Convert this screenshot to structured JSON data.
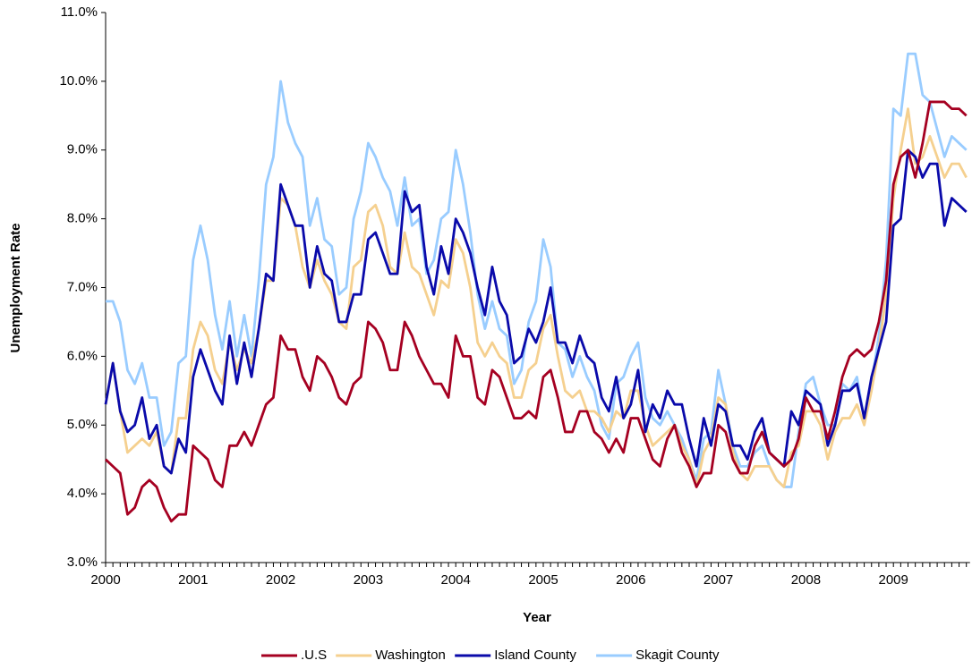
{
  "chart_data": {
    "type": "line",
    "x_label": "Year",
    "y_label": "Unemployment Rate",
    "categories": [
      "2000",
      null,
      null,
      null,
      null,
      null,
      null,
      null,
      null,
      null,
      null,
      null,
      "2001",
      null,
      null,
      null,
      null,
      null,
      null,
      null,
      null,
      null,
      null,
      null,
      "2002",
      null,
      null,
      null,
      null,
      null,
      null,
      null,
      null,
      null,
      null,
      null,
      "2003",
      null,
      null,
      null,
      null,
      null,
      null,
      null,
      null,
      null,
      null,
      null,
      "2004",
      null,
      null,
      null,
      null,
      null,
      null,
      null,
      null,
      null,
      null,
      null,
      "2005",
      null,
      null,
      null,
      null,
      null,
      null,
      null,
      null,
      null,
      null,
      null,
      "2006",
      null,
      null,
      null,
      null,
      null,
      null,
      null,
      null,
      null,
      null,
      null,
      "2007",
      null,
      null,
      null,
      null,
      null,
      null,
      null,
      null,
      null,
      null,
      null,
      "2008",
      null,
      null,
      null,
      null,
      null,
      null,
      null,
      null,
      null,
      null,
      null,
      "2009",
      null,
      null,
      null,
      null,
      null,
      null,
      null,
      null,
      null,
      null
    ],
    "ylim": [
      3,
      11
    ],
    "yticks": [
      {
        "value": 3,
        "label": "3.0%"
      },
      {
        "value": 4,
        "label": "4.0%"
      },
      {
        "value": 5,
        "label": "5.0%"
      },
      {
        "value": 6,
        "label": "6.0%"
      },
      {
        "value": 7,
        "label": "7.0%"
      },
      {
        "value": 8,
        "label": "8.0%"
      },
      {
        "value": 9,
        "label": "9.0%"
      },
      {
        "value": 10,
        "label": "10.0%"
      },
      {
        "value": 11,
        "label": "11.0%"
      }
    ],
    "grid": false,
    "legend": "bottom",
    "series": [
      {
        "name": ".U.S",
        "color": "#a50021",
        "values": [
          4.5,
          4.4,
          4.3,
          3.7,
          3.8,
          4.1,
          4.2,
          4.1,
          3.8,
          3.6,
          3.7,
          3.7,
          4.7,
          4.6,
          4.5,
          4.2,
          4.1,
          4.7,
          4.7,
          4.9,
          4.7,
          5.0,
          5.3,
          5.4,
          6.3,
          6.1,
          6.1,
          5.7,
          5.5,
          6.0,
          5.9,
          5.7,
          5.4,
          5.3,
          5.6,
          5.7,
          6.5,
          6.4,
          6.2,
          5.8,
          5.8,
          6.5,
          6.3,
          6.0,
          5.8,
          5.6,
          5.6,
          5.4,
          6.3,
          6.0,
          6.0,
          5.4,
          5.3,
          5.8,
          5.7,
          5.4,
          5.1,
          5.1,
          5.2,
          5.1,
          5.7,
          5.8,
          5.4,
          4.9,
          4.9,
          5.2,
          5.2,
          4.9,
          4.8,
          4.6,
          4.8,
          4.6,
          5.1,
          5.1,
          4.8,
          4.5,
          4.4,
          4.8,
          5.0,
          4.6,
          4.4,
          4.1,
          4.3,
          4.3,
          5.0,
          4.9,
          4.5,
          4.3,
          4.3,
          4.7,
          4.9,
          4.6,
          4.5,
          4.4,
          4.5,
          4.8,
          5.4,
          5.2,
          5.2,
          4.8,
          5.2,
          5.7,
          6.0,
          6.1,
          6.0,
          6.1,
          6.5,
          7.1,
          8.5,
          8.9,
          9.0,
          8.6,
          9.1,
          9.7,
          9.7,
          9.7,
          9.6,
          9.6,
          9.5
        ]
      },
      {
        "name": "Washington",
        "color": "#f5d08f",
        "values": [
          5.3,
          5.9,
          5.2,
          4.6,
          4.7,
          4.8,
          4.7,
          4.9,
          4.4,
          4.3,
          5.1,
          5.1,
          6.1,
          6.5,
          6.3,
          5.8,
          5.6,
          6.2,
          5.8,
          6.1,
          5.9,
          6.4,
          7.1,
          7.1,
          8.3,
          8.2,
          7.9,
          7.3,
          7.0,
          7.4,
          7.1,
          6.9,
          6.5,
          6.4,
          7.3,
          7.4,
          8.1,
          8.2,
          7.9,
          7.3,
          7.2,
          7.8,
          7.3,
          7.2,
          6.9,
          6.6,
          7.1,
          7.0,
          7.7,
          7.5,
          7.0,
          6.2,
          6.0,
          6.2,
          6.0,
          5.9,
          5.4,
          5.4,
          5.8,
          5.9,
          6.4,
          6.6,
          6.0,
          5.5,
          5.4,
          5.5,
          5.2,
          5.2,
          5.1,
          4.9,
          5.2,
          5.1,
          5.5,
          5.5,
          5.0,
          4.7,
          4.8,
          4.9,
          5.0,
          4.7,
          4.5,
          4.1,
          4.6,
          4.8,
          5.4,
          5.3,
          4.6,
          4.3,
          4.2,
          4.4,
          4.4,
          4.4,
          4.2,
          4.1,
          4.6,
          4.7,
          5.2,
          5.2,
          5.0,
          4.5,
          4.9,
          5.1,
          5.1,
          5.3,
          5.0,
          5.5,
          6.1,
          6.9,
          8.3,
          9.0,
          9.6,
          8.8,
          8.9,
          9.2,
          8.9,
          8.6,
          8.8,
          8.8,
          8.6
        ]
      },
      {
        "name": "Island County",
        "color": "#0a0aaa",
        "values": [
          5.3,
          5.9,
          5.2,
          4.9,
          5.0,
          5.4,
          4.8,
          5.0,
          4.4,
          4.3,
          4.8,
          4.6,
          5.7,
          6.1,
          5.8,
          5.5,
          5.3,
          6.3,
          5.6,
          6.2,
          5.7,
          6.4,
          7.2,
          7.1,
          8.5,
          8.2,
          7.9,
          7.9,
          7.0,
          7.6,
          7.2,
          7.1,
          6.5,
          6.5,
          6.9,
          6.9,
          7.7,
          7.8,
          7.5,
          7.2,
          7.2,
          8.4,
          8.1,
          8.2,
          7.3,
          6.9,
          7.6,
          7.2,
          8.0,
          7.8,
          7.5,
          7.0,
          6.6,
          7.3,
          6.8,
          6.6,
          5.9,
          6.0,
          6.4,
          6.2,
          6.5,
          7.0,
          6.2,
          6.2,
          5.9,
          6.3,
          6.0,
          5.9,
          5.4,
          5.2,
          5.7,
          5.1,
          5.3,
          5.8,
          4.9,
          5.3,
          5.1,
          5.5,
          5.3,
          5.3,
          4.8,
          4.4,
          5.1,
          4.7,
          5.3,
          5.2,
          4.7,
          4.7,
          4.5,
          4.9,
          5.1,
          4.6,
          4.5,
          4.4,
          5.2,
          5.0,
          5.5,
          5.4,
          5.3,
          4.7,
          5.0,
          5.5,
          5.5,
          5.6,
          5.1,
          5.7,
          6.1,
          6.5,
          7.9,
          8.0,
          9.0,
          8.9,
          8.6,
          8.8,
          8.8,
          7.9,
          8.3,
          8.2,
          8.1
        ]
      },
      {
        "name": "Skagit County",
        "color": "#99ccff",
        "values": [
          6.8,
          6.8,
          6.5,
          5.8,
          5.6,
          5.9,
          5.4,
          5.4,
          4.7,
          4.9,
          5.9,
          6.0,
          7.4,
          7.9,
          7.4,
          6.6,
          6.1,
          6.8,
          6.0,
          6.6,
          6.0,
          7.1,
          8.5,
          8.9,
          10.0,
          9.4,
          9.1,
          8.9,
          7.9,
          8.3,
          7.7,
          7.6,
          6.9,
          7.0,
          8.0,
          8.4,
          9.1,
          8.9,
          8.6,
          8.4,
          7.9,
          8.6,
          7.9,
          8.0,
          7.2,
          7.4,
          8.0,
          8.1,
          9.0,
          8.5,
          7.8,
          6.9,
          6.4,
          6.8,
          6.4,
          6.3,
          5.6,
          5.8,
          6.5,
          6.8,
          7.7,
          7.3,
          6.2,
          6.1,
          5.7,
          6.0,
          5.7,
          5.5,
          5.0,
          4.8,
          5.6,
          5.7,
          6.0,
          6.2,
          5.4,
          5.1,
          5.0,
          5.2,
          5.0,
          4.8,
          4.5,
          4.2,
          4.8,
          4.9,
          5.8,
          5.3,
          4.7,
          4.4,
          4.4,
          4.6,
          4.7,
          4.4,
          4.2,
          4.1,
          4.1,
          4.9,
          5.6,
          5.7,
          5.3,
          5.0,
          5.0,
          5.6,
          5.5,
          5.7,
          5.1,
          5.6,
          6.3,
          7.4,
          9.6,
          9.5,
          10.4,
          10.4,
          9.8,
          9.7,
          9.3,
          8.9,
          9.2,
          9.1,
          9.0
        ]
      }
    ]
  }
}
